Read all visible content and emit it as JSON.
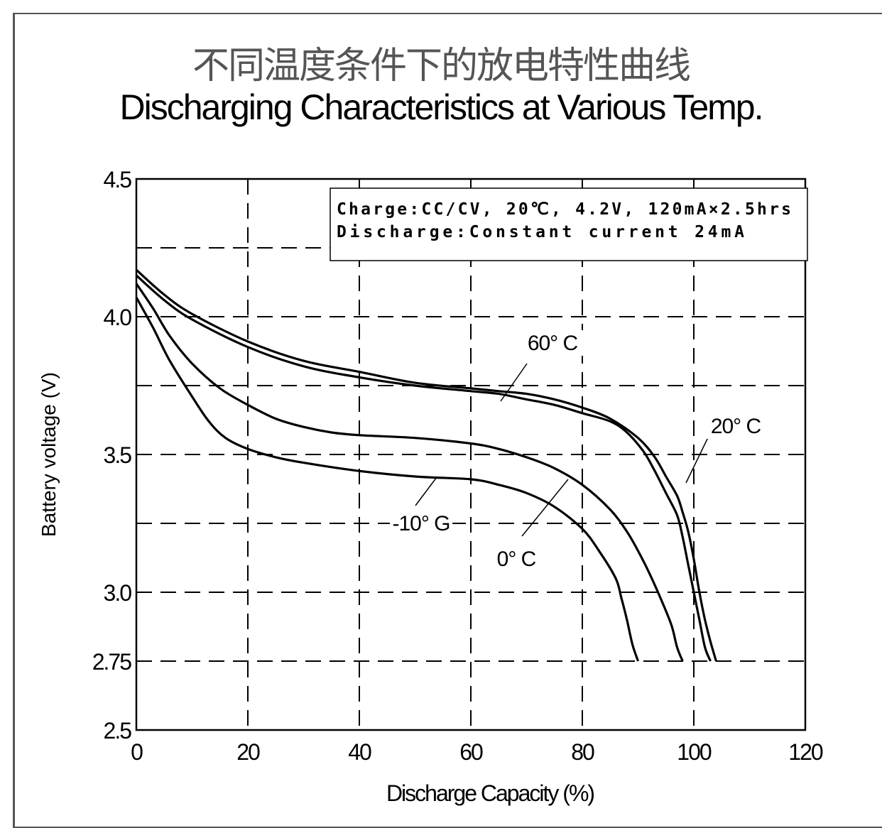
{
  "chart_data": {
    "type": "line",
    "title": "不同温度条件下的放电特性曲线",
    "subtitle": "Discharging Characteristics at Various Temp.",
    "xlabel": "Discharge Capacity (%)",
    "ylabel": "Battery voltage (V)",
    "xlim": [
      0,
      120
    ],
    "ylim": [
      2.5,
      4.5
    ],
    "x_ticks": [
      "0",
      "20",
      "40",
      "60",
      "80",
      "100",
      "120"
    ],
    "y_ticks": [
      {
        "value": 4.5,
        "label": "4.5"
      },
      {
        "value": 4.0,
        "label": "4.0"
      },
      {
        "value": 3.5,
        "label": "3.5"
      },
      {
        "value": 3.0,
        "label": "3.0"
      },
      {
        "value": 2.75,
        "label": "2.75"
      },
      {
        "value": 2.5,
        "label": "2.5"
      }
    ],
    "grid": true,
    "legend_box": {
      "line1": "Charge:CC/CV, 20℃, 4.2V, 120mA×2.5hrs",
      "line2": " Discharge:Constant current 24mA"
    },
    "series": [
      {
        "name": "60° C",
        "points": [
          [
            0,
            4.15
          ],
          [
            5,
            4.06
          ],
          [
            10,
            3.99
          ],
          [
            20,
            3.89
          ],
          [
            30,
            3.82
          ],
          [
            40,
            3.78
          ],
          [
            50,
            3.75
          ],
          [
            60,
            3.73
          ],
          [
            65,
            3.72
          ],
          [
            70,
            3.7
          ],
          [
            75,
            3.68
          ],
          [
            80,
            3.65
          ],
          [
            85,
            3.62
          ],
          [
            88,
            3.58
          ],
          [
            91,
            3.51
          ],
          [
            93,
            3.44
          ],
          [
            95,
            3.36
          ],
          [
            97,
            3.28
          ],
          [
            98,
            3.2
          ],
          [
            99,
            3.1
          ],
          [
            100,
            3.0
          ],
          [
            101,
            2.9
          ],
          [
            102,
            2.8
          ],
          [
            103,
            2.75
          ]
        ]
      },
      {
        "name": "20° C",
        "points": [
          [
            0,
            4.17
          ],
          [
            5,
            4.08
          ],
          [
            10,
            4.01
          ],
          [
            20,
            3.91
          ],
          [
            30,
            3.84
          ],
          [
            40,
            3.8
          ],
          [
            50,
            3.76
          ],
          [
            60,
            3.74
          ],
          [
            65,
            3.73
          ],
          [
            70,
            3.72
          ],
          [
            75,
            3.7
          ],
          [
            80,
            3.67
          ],
          [
            85,
            3.63
          ],
          [
            90,
            3.56
          ],
          [
            93,
            3.49
          ],
          [
            95,
            3.42
          ],
          [
            97,
            3.35
          ],
          [
            98,
            3.29
          ],
          [
            99,
            3.22
          ],
          [
            100,
            3.12
          ],
          [
            101,
            3.0
          ],
          [
            102,
            2.9
          ],
          [
            103,
            2.82
          ],
          [
            104,
            2.75
          ]
        ]
      },
      {
        "name": "0° C",
        "points": [
          [
            0,
            4.12
          ],
          [
            3,
            4.03
          ],
          [
            6,
            3.93
          ],
          [
            10,
            3.83
          ],
          [
            15,
            3.74
          ],
          [
            20,
            3.68
          ],
          [
            25,
            3.63
          ],
          [
            30,
            3.6
          ],
          [
            35,
            3.58
          ],
          [
            40,
            3.57
          ],
          [
            50,
            3.56
          ],
          [
            60,
            3.54
          ],
          [
            65,
            3.52
          ],
          [
            70,
            3.49
          ],
          [
            75,
            3.45
          ],
          [
            80,
            3.39
          ],
          [
            85,
            3.3
          ],
          [
            88,
            3.22
          ],
          [
            90,
            3.15
          ],
          [
            92,
            3.07
          ],
          [
            94,
            2.98
          ],
          [
            96,
            2.88
          ],
          [
            97,
            2.8
          ],
          [
            98,
            2.75
          ]
        ]
      },
      {
        "name": "-10° C",
        "points": [
          [
            0,
            4.07
          ],
          [
            3,
            3.96
          ],
          [
            6,
            3.84
          ],
          [
            10,
            3.71
          ],
          [
            13,
            3.62
          ],
          [
            16,
            3.56
          ],
          [
            20,
            3.52
          ],
          [
            25,
            3.49
          ],
          [
            30,
            3.47
          ],
          [
            40,
            3.44
          ],
          [
            50,
            3.42
          ],
          [
            60,
            3.41
          ],
          [
            65,
            3.39
          ],
          [
            70,
            3.36
          ],
          [
            75,
            3.31
          ],
          [
            80,
            3.23
          ],
          [
            83,
            3.15
          ],
          [
            86,
            3.05
          ],
          [
            87,
            2.98
          ],
          [
            88,
            2.9
          ],
          [
            89,
            2.81
          ],
          [
            90,
            2.75
          ]
        ]
      }
    ],
    "curve_labels": [
      {
        "name": "60° C",
        "text": "60° C"
      },
      {
        "name": "20° C",
        "text": "20° C"
      },
      {
        "name": "0° C",
        "text": "0° C"
      },
      {
        "name": "-10° C",
        "text": "-10° G"
      }
    ]
  }
}
